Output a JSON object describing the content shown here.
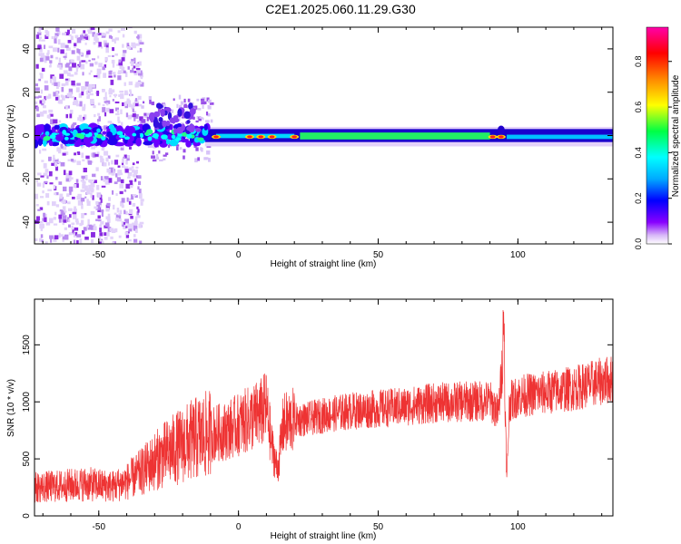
{
  "title": "C2E1.2025.060.11.29.G30",
  "chart_data": [
    {
      "type": "heatmap",
      "name": "spectrogram",
      "xlabel": "Height of straight line (km)",
      "ylabel": "Frequency (Hz)",
      "xlim": [
        -73,
        134
      ],
      "ylim": [
        -50,
        50
      ],
      "xticks": [
        -50,
        0,
        50,
        100
      ],
      "yticks": [
        -40,
        -20,
        0,
        20,
        40
      ],
      "colorbar": {
        "label": "Normalized spectral amplitude",
        "range": [
          0,
          0.95
        ],
        "ticks": [
          0.0,
          0.2,
          0.4,
          0.6,
          0.8
        ],
        "tick_labels": [
          "0.0",
          "0.2",
          "0.4",
          "0.6",
          "0.8"
        ]
      },
      "ridge": {
        "center_frequency": 0,
        "band_start_km": -12,
        "band_end_km": 134,
        "band_halfwidth_hz": 3,
        "peak_amplitude_km": [
          -8,
          4,
          8,
          12,
          20,
          91,
          94
        ]
      }
    },
    {
      "type": "line",
      "name": "snr",
      "xlabel": "Height of straight line (km)",
      "ylabel": "SNR (10 * v/v)",
      "xlim": [
        -73,
        134
      ],
      "ylim": [
        0,
        1900
      ],
      "xticks": [
        -50,
        0,
        50,
        100
      ],
      "yticks": [
        0,
        500,
        1000,
        1500
      ],
      "color": "#ee3333",
      "x": [
        -73,
        -65,
        -55,
        -45,
        -40,
        -35,
        -30,
        -25,
        -20,
        -15,
        -10,
        -5,
        0,
        5,
        8,
        10,
        12,
        14,
        16,
        20,
        25,
        30,
        40,
        50,
        60,
        70,
        80,
        90,
        93,
        95,
        96,
        97,
        100,
        110,
        120,
        130,
        134
      ],
      "values": [
        250,
        260,
        280,
        260,
        300,
        380,
        480,
        560,
        620,
        680,
        720,
        740,
        800,
        860,
        900,
        950,
        600,
        400,
        800,
        840,
        850,
        880,
        920,
        940,
        960,
        990,
        1000,
        1010,
        900,
        1500,
        300,
        1000,
        1050,
        1080,
        1120,
        1180,
        1200
      ]
    }
  ]
}
